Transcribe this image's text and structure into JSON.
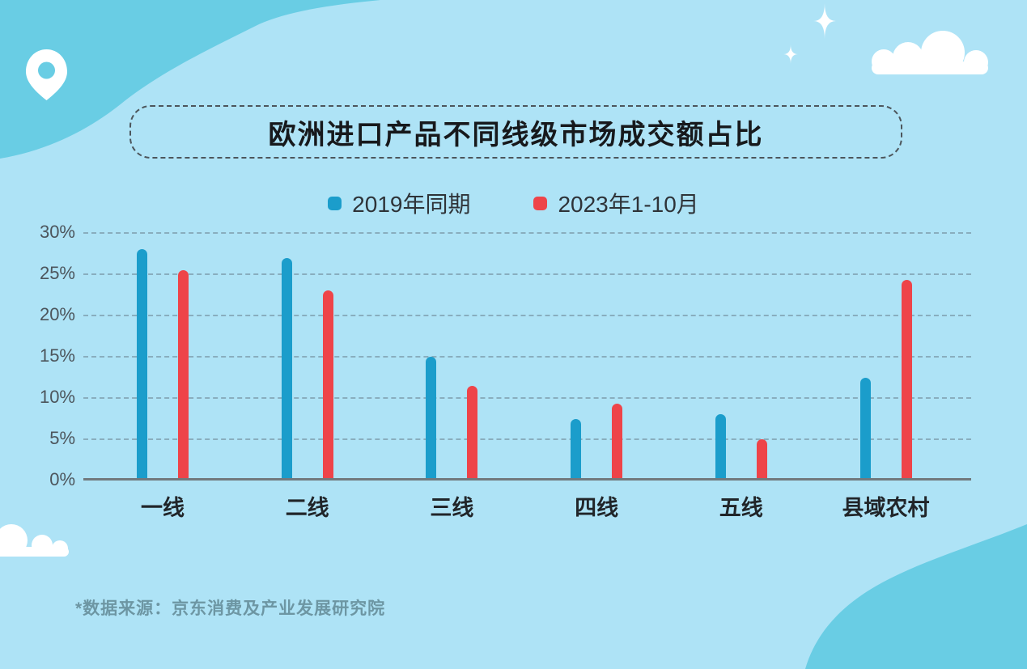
{
  "title": "欧洲进口产品不同线级市场成交额占比",
  "footer": {
    "source_note": "*数据来源：京东消费及产业发展研究院"
  },
  "colors": {
    "background": "#aee3f6",
    "wave_accent": "#69cde4",
    "decoration_white": "#ffffff",
    "series_2019_blue": "#1b9dcb",
    "series_2023_red": "#ee4449",
    "axis_line": "#71797e",
    "tick_text": "#4c555c"
  },
  "decorations": {
    "icons": [
      "location-pin-icon",
      "sparkle-icon",
      "cloud-icon",
      "wave-shape"
    ]
  },
  "chart_data": {
    "type": "bar",
    "title": "欧洲进口产品不同线级市场成交额占比",
    "categories": [
      "一线",
      "二线",
      "三线",
      "四线",
      "五线",
      "县域农村"
    ],
    "series": [
      {
        "name": "2019年同期",
        "color": "#1b9dcb",
        "values": [
          28,
          27,
          15,
          7.5,
          8,
          12.5
        ]
      },
      {
        "name": "2023年1-10月",
        "color": "#ee4449",
        "values": [
          25.5,
          23,
          11.5,
          9.3,
          5,
          24.3
        ]
      }
    ],
    "xlabel": "",
    "ylabel": "",
    "ylim": [
      0,
      30
    ],
    "ytick_step": 5,
    "ytick_labels": [
      "0%",
      "5%",
      "10%",
      "15%",
      "20%",
      "25%",
      "30%"
    ],
    "grid": true,
    "legend_position": "top"
  }
}
